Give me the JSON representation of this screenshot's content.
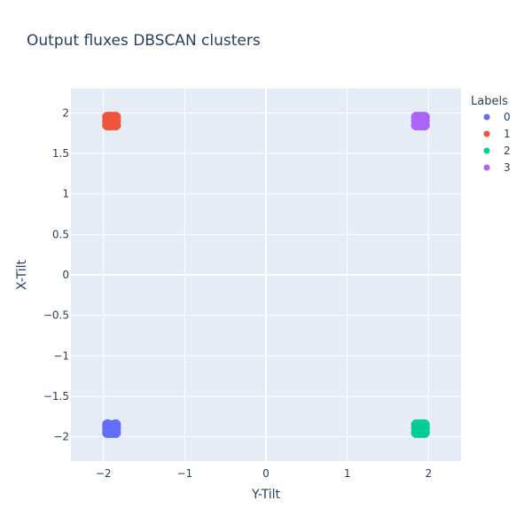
{
  "chart_data": {
    "type": "scatter",
    "title": "Output fluxes DBSCAN clusters",
    "xlabel": "Y-Tilt",
    "ylabel": "X-Tilt",
    "xlim": [
      -2.4,
      2.4
    ],
    "ylim": [
      -2.3,
      2.3
    ],
    "x_ticks": [
      -2,
      -1,
      0,
      1,
      2
    ],
    "x_tick_labels": [
      "−2",
      "−1",
      "0",
      "1",
      "2"
    ],
    "y_ticks": [
      2,
      1.5,
      1,
      0.5,
      0,
      -0.5,
      -1,
      -1.5,
      -2
    ],
    "y_tick_labels": [
      "2",
      "1.5",
      "1",
      "0.5",
      "0",
      "−0.5",
      "−1",
      "−1.5",
      "−2"
    ],
    "grid": true,
    "legend_title": "Labels",
    "legend_position": "right",
    "series": [
      {
        "name": "0",
        "color": "#636efa",
        "center": [
          -1.9,
          -1.9
        ],
        "points": [
          [
            -1.95,
            -1.85
          ],
          [
            -1.9,
            -1.86
          ],
          [
            -1.85,
            -1.85
          ],
          [
            -1.95,
            -1.9
          ],
          [
            -1.9,
            -1.9
          ],
          [
            -1.85,
            -1.9
          ],
          [
            -1.95,
            -1.95
          ],
          [
            -1.9,
            -1.95
          ],
          [
            -1.85,
            -1.95
          ],
          [
            -1.92,
            -1.88
          ],
          [
            -1.88,
            -1.92
          ]
        ]
      },
      {
        "name": "1",
        "color": "#ef553b",
        "center": [
          -1.9,
          1.9
        ],
        "points": [
          [
            -1.95,
            1.95
          ],
          [
            -1.9,
            1.95
          ],
          [
            -1.85,
            1.95
          ],
          [
            -1.95,
            1.9
          ],
          [
            -1.9,
            1.9
          ],
          [
            -1.85,
            1.9
          ],
          [
            -1.95,
            1.85
          ],
          [
            -1.9,
            1.85
          ],
          [
            -1.85,
            1.85
          ],
          [
            -1.92,
            1.92
          ],
          [
            -1.88,
            1.88
          ]
        ]
      },
      {
        "name": "2",
        "color": "#00cc96",
        "center": [
          1.9,
          -1.9
        ],
        "points": [
          [
            1.85,
            -1.85
          ],
          [
            1.9,
            -1.85
          ],
          [
            1.95,
            -1.85
          ],
          [
            1.85,
            -1.9
          ],
          [
            1.9,
            -1.9
          ],
          [
            1.95,
            -1.9
          ],
          [
            1.85,
            -1.95
          ],
          [
            1.9,
            -1.95
          ],
          [
            1.95,
            -1.95
          ],
          [
            1.92,
            -1.88
          ],
          [
            1.88,
            -1.92
          ]
        ]
      },
      {
        "name": "3",
        "color": "#ab63fa",
        "center": [
          1.9,
          1.9
        ],
        "points": [
          [
            1.85,
            1.95
          ],
          [
            1.9,
            1.95
          ],
          [
            1.95,
            1.95
          ],
          [
            1.85,
            1.9
          ],
          [
            1.9,
            1.9
          ],
          [
            1.95,
            1.9
          ],
          [
            1.85,
            1.85
          ],
          [
            1.9,
            1.85
          ],
          [
            1.95,
            1.85
          ],
          [
            1.92,
            1.92
          ],
          [
            1.88,
            1.88
          ]
        ]
      }
    ]
  }
}
